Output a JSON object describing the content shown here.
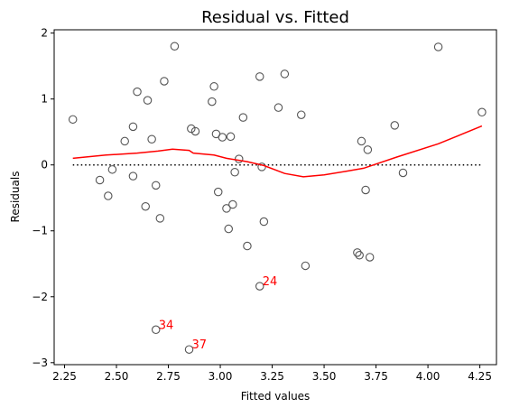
{
  "chart_data": {
    "type": "scatter",
    "title": "Residual vs. Fitted",
    "xlabel": "Fitted values",
    "ylabel": "Residuals",
    "xlim": [
      2.2,
      4.33
    ],
    "ylim": [
      -3.03,
      2.05
    ],
    "x_ticks": [
      2.25,
      2.5,
      2.75,
      3.0,
      3.25,
      3.5,
      3.75,
      4.0,
      4.25
    ],
    "x_tick_labels": [
      "2.25",
      "2.50",
      "2.75",
      "3.00",
      "3.25",
      "3.50",
      "3.75",
      "4.00",
      "4.25"
    ],
    "y_ticks": [
      -3,
      -2,
      -1,
      0,
      1,
      2
    ],
    "y_tick_labels": [
      "−3",
      "−2",
      "−1",
      "0",
      "1",
      "2"
    ],
    "grid": false,
    "colors": {
      "points": "#555555",
      "smoother": "#ff0000",
      "reference_line": "#000000",
      "annotation": "#ff0000"
    },
    "points": [
      {
        "x": 2.29,
        "y": 0.69
      },
      {
        "x": 2.42,
        "y": -0.23
      },
      {
        "x": 2.46,
        "y": -0.47
      },
      {
        "x": 2.48,
        "y": -0.07
      },
      {
        "x": 2.54,
        "y": 0.36
      },
      {
        "x": 2.58,
        "y": 0.58
      },
      {
        "x": 2.58,
        "y": -0.17
      },
      {
        "x": 2.6,
        "y": 1.11
      },
      {
        "x": 2.64,
        "y": -0.63
      },
      {
        "x": 2.65,
        "y": 0.98
      },
      {
        "x": 2.67,
        "y": 0.39
      },
      {
        "x": 2.69,
        "y": -0.31
      },
      {
        "x": 2.69,
        "y": -2.5
      },
      {
        "x": 2.71,
        "y": -0.81
      },
      {
        "x": 2.73,
        "y": 1.27
      },
      {
        "x": 2.78,
        "y": 1.8
      },
      {
        "x": 2.85,
        "y": -2.8
      },
      {
        "x": 2.86,
        "y": 0.55
      },
      {
        "x": 2.88,
        "y": 0.51
      },
      {
        "x": 2.96,
        "y": 0.96
      },
      {
        "x": 2.97,
        "y": 1.19
      },
      {
        "x": 2.98,
        "y": 0.47
      },
      {
        "x": 2.99,
        "y": -0.41
      },
      {
        "x": 3.01,
        "y": 0.42
      },
      {
        "x": 3.03,
        "y": -0.66
      },
      {
        "x": 3.04,
        "y": -0.97
      },
      {
        "x": 3.05,
        "y": 0.43
      },
      {
        "x": 3.06,
        "y": -0.6
      },
      {
        "x": 3.07,
        "y": -0.11
      },
      {
        "x": 3.09,
        "y": 0.09
      },
      {
        "x": 3.11,
        "y": 0.72
      },
      {
        "x": 3.13,
        "y": -1.23
      },
      {
        "x": 3.19,
        "y": 1.34
      },
      {
        "x": 3.19,
        "y": -1.84
      },
      {
        "x": 3.2,
        "y": -0.03
      },
      {
        "x": 3.21,
        "y": -0.86
      },
      {
        "x": 3.28,
        "y": 0.87
      },
      {
        "x": 3.31,
        "y": 1.38
      },
      {
        "x": 3.39,
        "y": 0.76
      },
      {
        "x": 3.41,
        "y": -1.53
      },
      {
        "x": 3.66,
        "y": -1.33
      },
      {
        "x": 3.67,
        "y": -1.37
      },
      {
        "x": 3.68,
        "y": 0.36
      },
      {
        "x": 3.7,
        "y": -0.38
      },
      {
        "x": 3.71,
        "y": 0.23
      },
      {
        "x": 3.72,
        "y": -1.4
      },
      {
        "x": 3.84,
        "y": 0.6
      },
      {
        "x": 3.88,
        "y": -0.12
      },
      {
        "x": 4.05,
        "y": 1.79
      },
      {
        "x": 4.26,
        "y": 0.8
      }
    ],
    "smoother": [
      {
        "x": 2.29,
        "y": 0.1
      },
      {
        "x": 2.45,
        "y": 0.15
      },
      {
        "x": 2.6,
        "y": 0.18
      },
      {
        "x": 2.7,
        "y": 0.21
      },
      {
        "x": 2.77,
        "y": 0.24
      },
      {
        "x": 2.85,
        "y": 0.22
      },
      {
        "x": 2.87,
        "y": 0.18
      },
      {
        "x": 2.97,
        "y": 0.15
      },
      {
        "x": 3.03,
        "y": 0.1
      },
      {
        "x": 3.13,
        "y": 0.05
      },
      {
        "x": 3.21,
        "y": -0.01
      },
      {
        "x": 3.31,
        "y": -0.13
      },
      {
        "x": 3.4,
        "y": -0.18
      },
      {
        "x": 3.5,
        "y": -0.15
      },
      {
        "x": 3.6,
        "y": -0.1
      },
      {
        "x": 3.69,
        "y": -0.05
      },
      {
        "x": 3.85,
        "y": 0.12
      },
      {
        "x": 4.05,
        "y": 0.32
      },
      {
        "x": 4.26,
        "y": 0.59
      }
    ],
    "reference_line": {
      "y": 0,
      "x_from": 2.29,
      "x_to": 4.26,
      "style": "dotted"
    },
    "annotations": [
      {
        "label": "24",
        "x": 3.19,
        "y": -1.84
      },
      {
        "label": "34",
        "x": 2.69,
        "y": -2.5
      },
      {
        "label": "37",
        "x": 2.85,
        "y": -2.8
      }
    ]
  }
}
